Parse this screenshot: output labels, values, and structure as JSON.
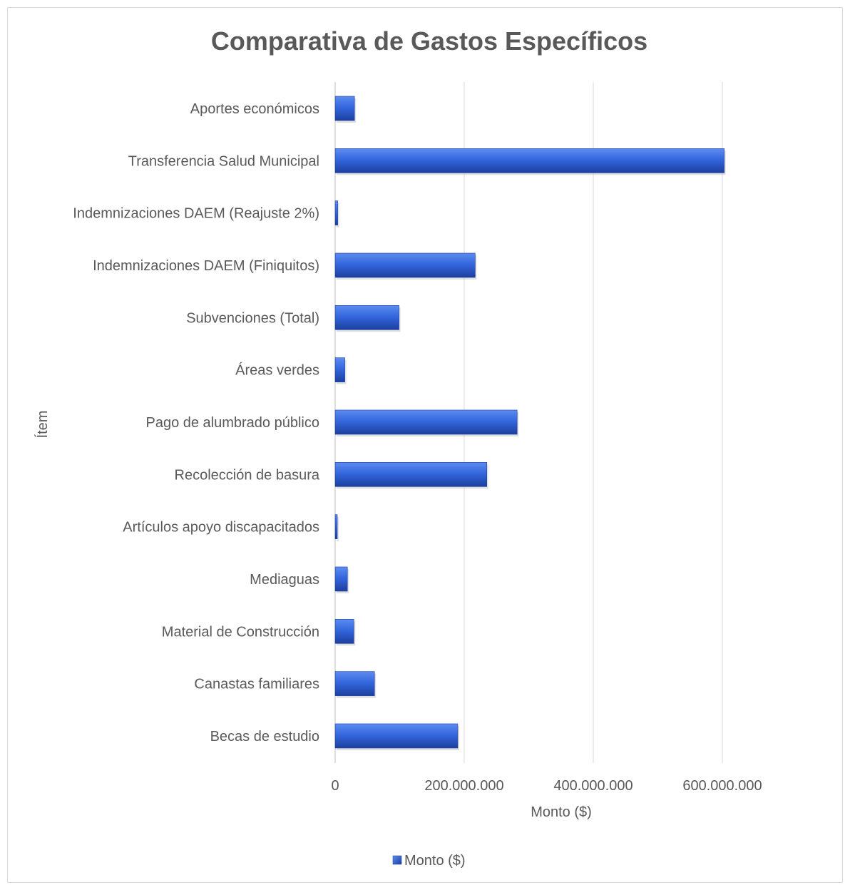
{
  "chart_data": {
    "type": "bar",
    "orientation": "horizontal",
    "title": "Comparativa de Gastos Específicos",
    "xlabel": "Monto ($)",
    "ylabel": "Ítem",
    "categories": [
      "Aportes económicos",
      "Transferencia Salud Municipal",
      "Indemnizaciones DAEM (Reajuste 2%)",
      "Indemnizaciones DAEM (Finiquitos)",
      "Subvenciones (Total)",
      "Áreas verdes",
      "Pago de alumbrado público",
      "Recolección de basura",
      "Artículos apoyo discapacitados",
      "Mediaguas",
      "Material de Construcción",
      "Canastas familiares",
      "Becas de estudio"
    ],
    "series": [
      {
        "name": "Monto ($)",
        "color": "#2e5fd1",
        "values": [
          30000000,
          603000000,
          4000000,
          217000000,
          99000000,
          15000000,
          282000000,
          235000000,
          3000000,
          19000000,
          29000000,
          61000000,
          190000000
        ]
      }
    ],
    "xlim": [
      0,
      680000000
    ],
    "xticks": [
      0,
      200000000,
      400000000,
      600000000
    ],
    "xtick_labels": [
      "0",
      "200.000.000",
      "400.000.000",
      "600.000.000"
    ],
    "grid": "vertical",
    "legend": "bottom"
  }
}
